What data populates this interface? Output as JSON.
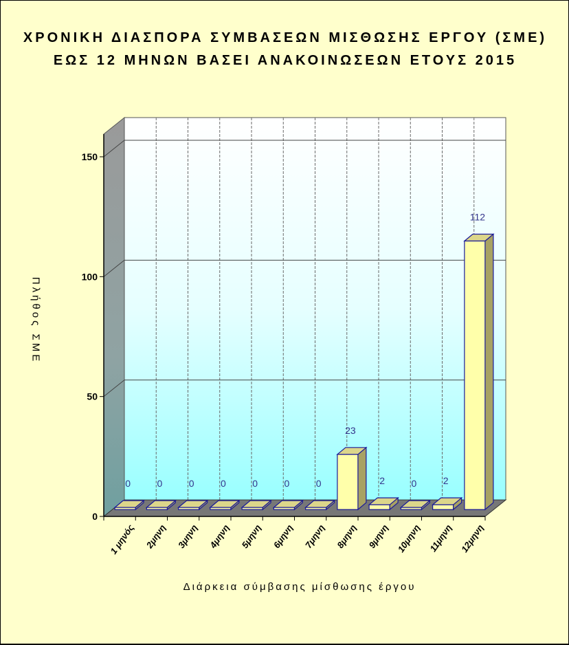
{
  "chart_data": {
    "type": "bar",
    "title_lines": [
      "ΧΡΟΝΙΚΗ ΔΙΑΣΠΟΡΑ ΣΥΜΒΑΣΕΩΝ ΜΙΣΘΩΣΗΣ ΕΡΓΟΥ (ΣΜΕ)",
      "ΕΩΣ 12 ΜΗΝΩΝ ΒΑΣΕΙ ΑΝΑΚΟΙΝΩΣΕΩΝ ΕΤΟΥΣ 2015"
    ],
    "xlabel": "Διάρκεια σύμβασης μίσθωσης έργου",
    "ylabel": "Πλήθος ΣΜΕ",
    "categories": [
      "1 μηνός",
      "2μηνη",
      "3μηνη",
      "4μηνη",
      "5μηνη",
      "6μηνη",
      "7μηνη",
      "8μηνη",
      "9μηνη",
      "10μηνη",
      "11μηνη",
      "12μηνη"
    ],
    "values": [
      0,
      0,
      0,
      0,
      0,
      0,
      0,
      23,
      2,
      0,
      2,
      112
    ],
    "ylim": [
      0,
      150
    ],
    "yticks": [
      0,
      50,
      100,
      150
    ],
    "grid": true,
    "three_d": true,
    "colors": {
      "background": "#ffffcc",
      "bar_front": "#ffffaa",
      "bar_top": "#dcd68a",
      "bar_side": "#a8a263",
      "bar_edge": "#1a1a99",
      "floor": "#777777",
      "label": "#33338a"
    }
  }
}
